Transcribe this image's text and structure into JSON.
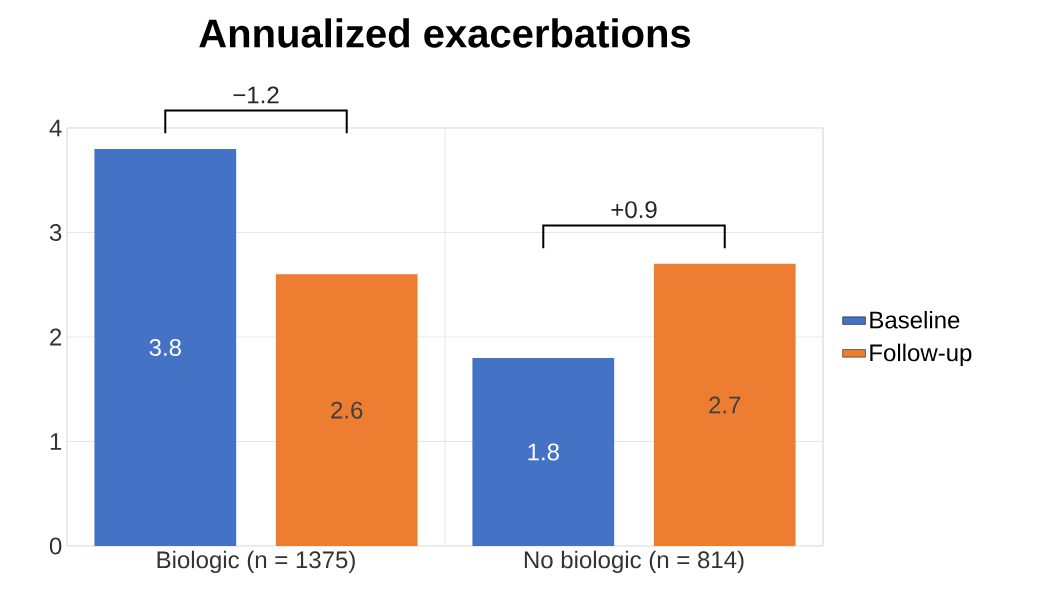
{
  "chart_data": {
    "type": "bar",
    "title": "Annualized exacerbations",
    "categories": [
      "Biologic (n = 1375)",
      "No biologic (n = 814)"
    ],
    "series": [
      {
        "name": "Baseline",
        "color": "#4472c4",
        "values": [
          3.8,
          1.8
        ]
      },
      {
        "name": "Follow-up",
        "color": "#ed7d31",
        "values": [
          2.6,
          2.7
        ]
      }
    ],
    "ylim": [
      0,
      4
    ],
    "yticks": [
      0,
      1,
      2,
      3,
      4
    ],
    "grid": true,
    "legend": "right",
    "data_labels": true,
    "annotations": [
      "−1.2",
      "+0.9"
    ]
  }
}
